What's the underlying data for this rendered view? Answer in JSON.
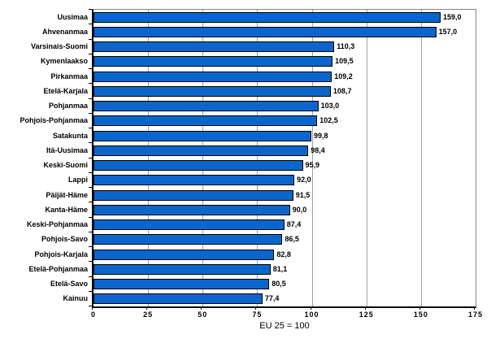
{
  "chart_data": {
    "type": "bar",
    "orientation": "horizontal",
    "title": "",
    "xlabel": "EU 25 = 100",
    "ylabel": "",
    "xlim": [
      0,
      175
    ],
    "xticks": [
      0,
      25,
      50,
      75,
      100,
      125,
      150,
      175
    ],
    "grid": true,
    "legend": false,
    "categories": [
      "Uusimaa",
      "Ahvenanmaa",
      "Varsinais-Suomi",
      "Kymenlaakso",
      "Pirkanmaa",
      "Etelä-Karjala",
      "Pohjanmaa",
      "Pohjois-Pohjanmaa",
      "Satakunta",
      "Itä-Uusimaa",
      "Keski-Suomi",
      "Lappi",
      "Päijät-Häme",
      "Kanta-Häme",
      "Keski-Pohjanmaa",
      "Pohjois-Savo",
      "Pohjois-Karjala",
      "Etelä-Pohjanmaa",
      "Etelä-Savo",
      "Kainuu"
    ],
    "values": [
      159.0,
      157.0,
      110.3,
      109.5,
      109.2,
      108.7,
      103.0,
      102.5,
      99.8,
      98.4,
      95.9,
      92.0,
      91.5,
      90.0,
      87.4,
      86.5,
      82.8,
      81.1,
      80.5,
      77.4
    ],
    "value_labels": [
      "159,0",
      "157,0",
      "110,3",
      "109,5",
      "109,2",
      "108,7",
      "103,0",
      "102,5",
      "99,8",
      "98,4",
      "95,9",
      "92,0",
      "91,5",
      "90,0",
      "87,4",
      "86,5",
      "82,8",
      "81,1",
      "80,5",
      "77,4"
    ]
  },
  "colors": {
    "bar_fill": "#0a66cc",
    "bar_border": "#000000",
    "gridline": "#a0a0a0",
    "plot_border_gray": "#848484",
    "axis_black": "#000000",
    "background": "#ffffff",
    "text": "#000000"
  }
}
